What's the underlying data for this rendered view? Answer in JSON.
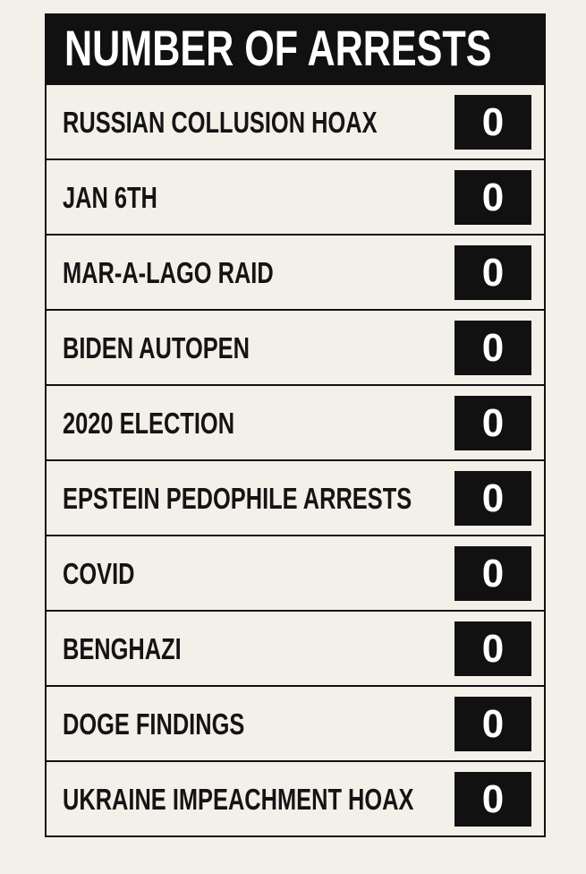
{
  "header": {
    "title": "NUMBER OF ARRESTS"
  },
  "table": {
    "rows": [
      [
        "RUSSIAN COLLUSION HOAX",
        0
      ],
      [
        "JAN 6TH",
        0
      ],
      [
        "MAR-A-LAGO RAID",
        0
      ],
      [
        "BIDEN AUTOPEN",
        0
      ],
      [
        "2020 ELECTION",
        0
      ],
      [
        "EPSTEIN PEDOPHILE ARRESTS",
        0
      ],
      [
        "COVID",
        0
      ],
      [
        "BENGHAZI",
        0
      ],
      [
        "DOGE FINDINGS",
        0
      ],
      [
        "UKRAINE IMPEACHMENT HOAX",
        0
      ]
    ]
  }
}
